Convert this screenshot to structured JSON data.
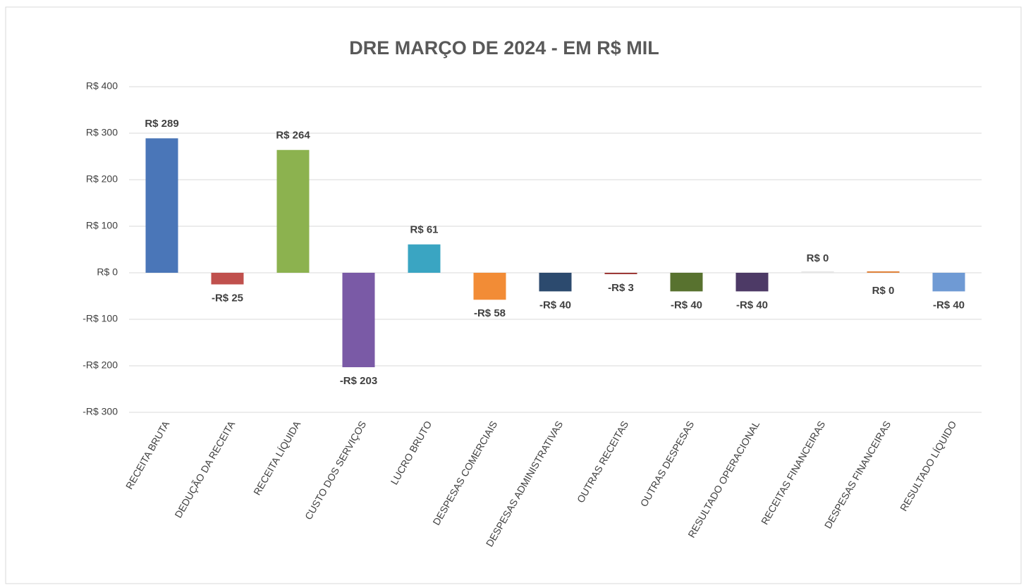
{
  "chart_data": {
    "type": "bar",
    "title": "DRE MARÇO DE 2024 - EM R$ MIL",
    "categories": [
      "RECEITA BRUTA",
      "DEDUÇÃO DA RECEITA",
      "RECEITA LÍQUIDA",
      "CUSTO DOS SERVIÇOS",
      "LUCRO BRUTO",
      "DESPESAS COMERCIAIS",
      "DESPESAS ADMINISTRATIVAS",
      "OUTRAS RECEITAS",
      "OUTRAS DESPESAS",
      "RESULTADO OPERACIONAL",
      "RECEITAS FINANCEIRAS",
      "DESPESAS FINANCEIRAS",
      "RESULTADO LÍQUIDO"
    ],
    "values": [
      289,
      -25,
      264,
      -203,
      61,
      -58,
      -40,
      -3,
      -40,
      -40,
      0,
      0,
      -40
    ],
    "value_labels": [
      "R$ 289",
      "-R$ 25",
      "R$ 264",
      "-R$ 203",
      "R$ 61",
      "-R$ 58",
      "-R$ 40",
      "-R$ 3",
      "-R$ 40",
      "-R$ 40",
      "R$ 0",
      "R$ 0",
      "-R$ 40"
    ],
    "colors": [
      "#4a76b8",
      "#c0504d",
      "#8cb24f",
      "#7a5aa6",
      "#3aa5c2",
      "#f28c36",
      "#2c4a6e",
      "#9e3a38",
      "#58722f",
      "#4d3a66",
      "#e6e6e6",
      "#e0823a",
      "#6f9ad4"
    ],
    "ylim": [
      -300,
      400
    ],
    "yticks": [
      {
        "value": -300,
        "label": "-R$ 300"
      },
      {
        "value": -200,
        "label": "-R$ 200"
      },
      {
        "value": -100,
        "label": "-R$ 100"
      },
      {
        "value": 0,
        "label": "R$ 0"
      },
      {
        "value": 100,
        "label": "R$ 100"
      },
      {
        "value": 200,
        "label": "R$ 200"
      },
      {
        "value": 300,
        "label": "R$ 300"
      },
      {
        "value": 400,
        "label": "R$ 400"
      }
    ],
    "grid": true
  }
}
